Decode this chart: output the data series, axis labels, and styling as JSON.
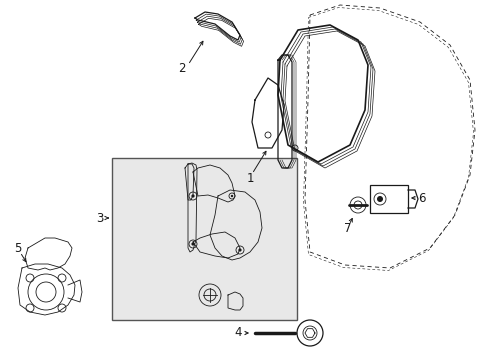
{
  "bg_color": "#ffffff",
  "line_color": "#1a1a1a",
  "box_bg": "#e8e8e8",
  "fig_width": 4.89,
  "fig_height": 3.6,
  "dpi": 100,
  "label_fs": 8.5,
  "lw_main": 0.9,
  "lw_thin": 0.6,
  "lw_thick": 1.2
}
